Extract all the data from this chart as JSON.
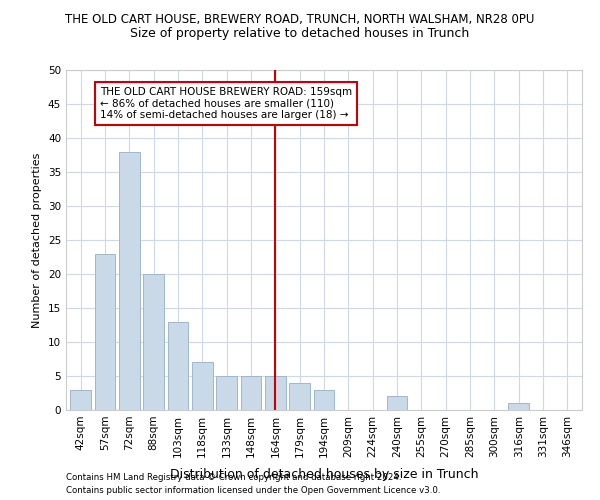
{
  "title": "THE OLD CART HOUSE, BREWERY ROAD, TRUNCH, NORTH WALSHAM, NR28 0PU",
  "subtitle": "Size of property relative to detached houses in Trunch",
  "xlabel": "Distribution of detached houses by size in Trunch",
  "ylabel": "Number of detached properties",
  "bar_labels": [
    "42sqm",
    "57sqm",
    "72sqm",
    "88sqm",
    "103sqm",
    "118sqm",
    "133sqm",
    "148sqm",
    "164sqm",
    "179sqm",
    "194sqm",
    "209sqm",
    "224sqm",
    "240sqm",
    "255sqm",
    "270sqm",
    "285sqm",
    "300sqm",
    "316sqm",
    "331sqm",
    "346sqm"
  ],
  "bar_values": [
    3,
    23,
    38,
    20,
    13,
    7,
    5,
    5,
    5,
    4,
    3,
    0,
    0,
    2,
    0,
    0,
    0,
    0,
    1,
    0,
    0
  ],
  "bar_color": "#c9d9e8",
  "bar_edgecolor": "#a0b8cc",
  "vline_idx": 8,
  "vline_color": "#cc0000",
  "ylim": [
    0,
    50
  ],
  "yticks": [
    0,
    5,
    10,
    15,
    20,
    25,
    30,
    35,
    40,
    45,
    50
  ],
  "annotation_text": "THE OLD CART HOUSE BREWERY ROAD: 159sqm\n← 86% of detached houses are smaller (110)\n14% of semi-detached houses are larger (18) →",
  "annotation_box_edgecolor": "#cc0000",
  "footer_line1": "Contains HM Land Registry data © Crown copyright and database right 2024.",
  "footer_line2": "Contains public sector information licensed under the Open Government Licence v3.0.",
  "background_color": "#ffffff",
  "grid_color": "#d0d8e8",
  "title_fontsize": 8.5,
  "subtitle_fontsize": 9,
  "ylabel_fontsize": 8,
  "xlabel_fontsize": 9,
  "tick_fontsize": 7.5,
  "annot_fontsize": 7.5,
  "footer_fontsize": 6.2
}
